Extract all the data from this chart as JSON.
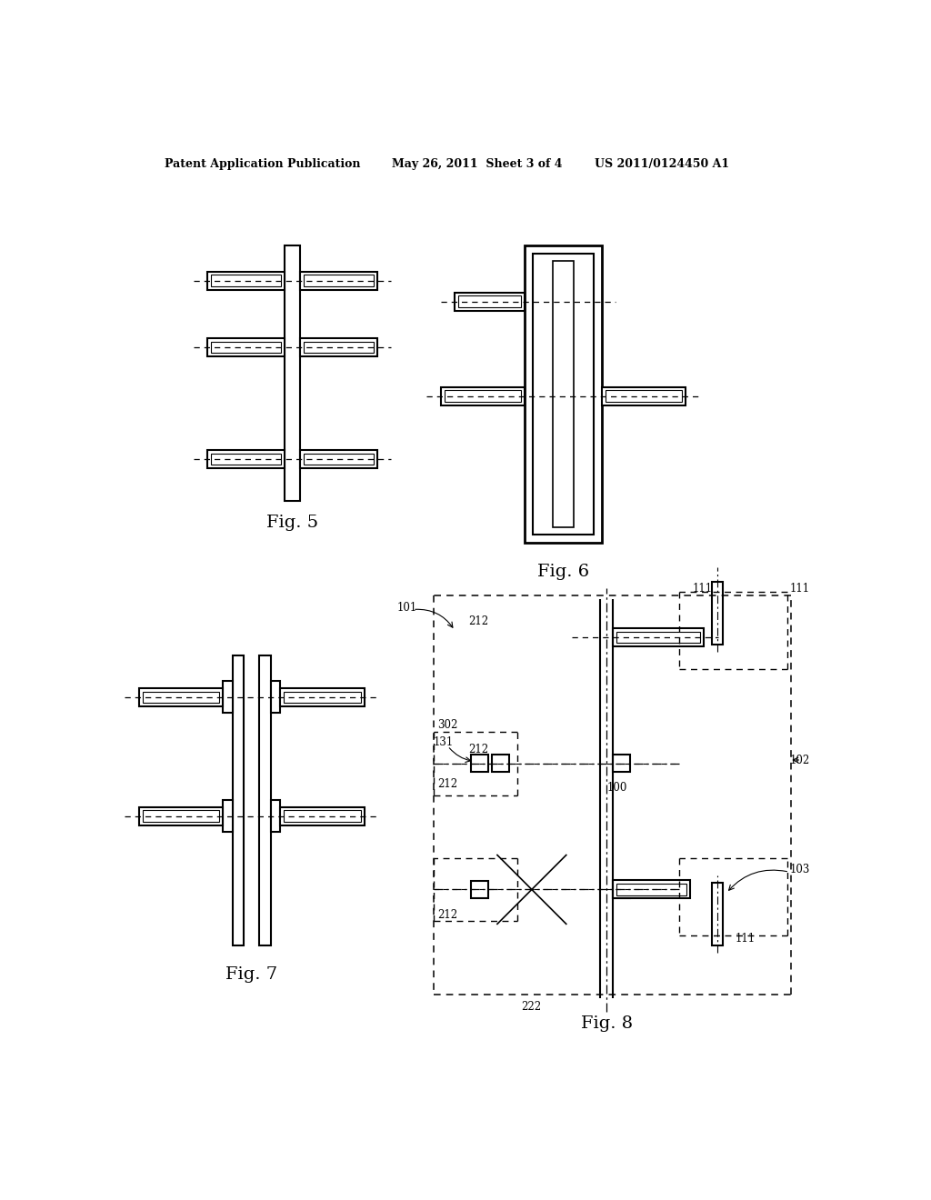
{
  "title_left": "Patent Application Publication",
  "title_mid": "May 26, 2011  Sheet 3 of 4",
  "title_right": "US 2011/0124450 A1",
  "fig5_label": "Fig. 5",
  "fig6_label": "Fig. 6",
  "fig7_label": "Fig. 7",
  "fig8_label": "Fig. 8",
  "bg_color": "#ffffff",
  "line_color": "#000000"
}
